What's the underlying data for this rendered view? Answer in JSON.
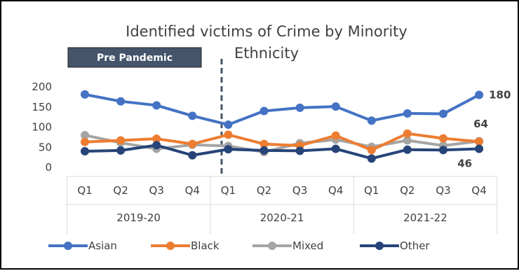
{
  "chart_data": {
    "type": "line",
    "title_lines": [
      "Identified victims of Crime by Minority",
      "Ethnicity"
    ],
    "categories": [
      "Q1",
      "Q2",
      "Q3",
      "Q4",
      "Q1",
      "Q2",
      "Q3",
      "Q4",
      "Q1",
      "Q2",
      "Q3",
      "Q4"
    ],
    "groups": [
      "2019-20",
      "2020-21",
      "2021-22"
    ],
    "ylim": [
      0,
      200
    ],
    "yticks": [
      "0",
      "50",
      "100",
      "150",
      "200"
    ],
    "grid": false,
    "legend_position": "bottom",
    "series": [
      {
        "name": "Asian",
        "color": "#4472C4",
        "values": [
          181,
          164,
          154,
          128,
          106,
          140,
          148,
          151,
          116,
          134,
          133,
          180
        ]
      },
      {
        "name": "Black",
        "color": "#ED7D31",
        "values": [
          63,
          67,
          71,
          58,
          81,
          58,
          54,
          79,
          43,
          84,
          72,
          64
        ]
      },
      {
        "name": "Mixed",
        "color": "#A5A5A5",
        "values": [
          80,
          61,
          46,
          56,
          53,
          38,
          60,
          69,
          51,
          67,
          54,
          65
        ]
      },
      {
        "name": "Other",
        "color": "#264478",
        "values": [
          40,
          42,
          55,
          30,
          45,
          42,
          41,
          46,
          22,
          44,
          43,
          46
        ]
      }
    ],
    "annotations": [
      {
        "series": "Asian",
        "label": "180"
      },
      {
        "series": "Black",
        "label": "64"
      },
      {
        "series": "Other",
        "label": "46"
      }
    ],
    "marker_label": "Pre Pandemic",
    "marker_after_index": 3
  }
}
